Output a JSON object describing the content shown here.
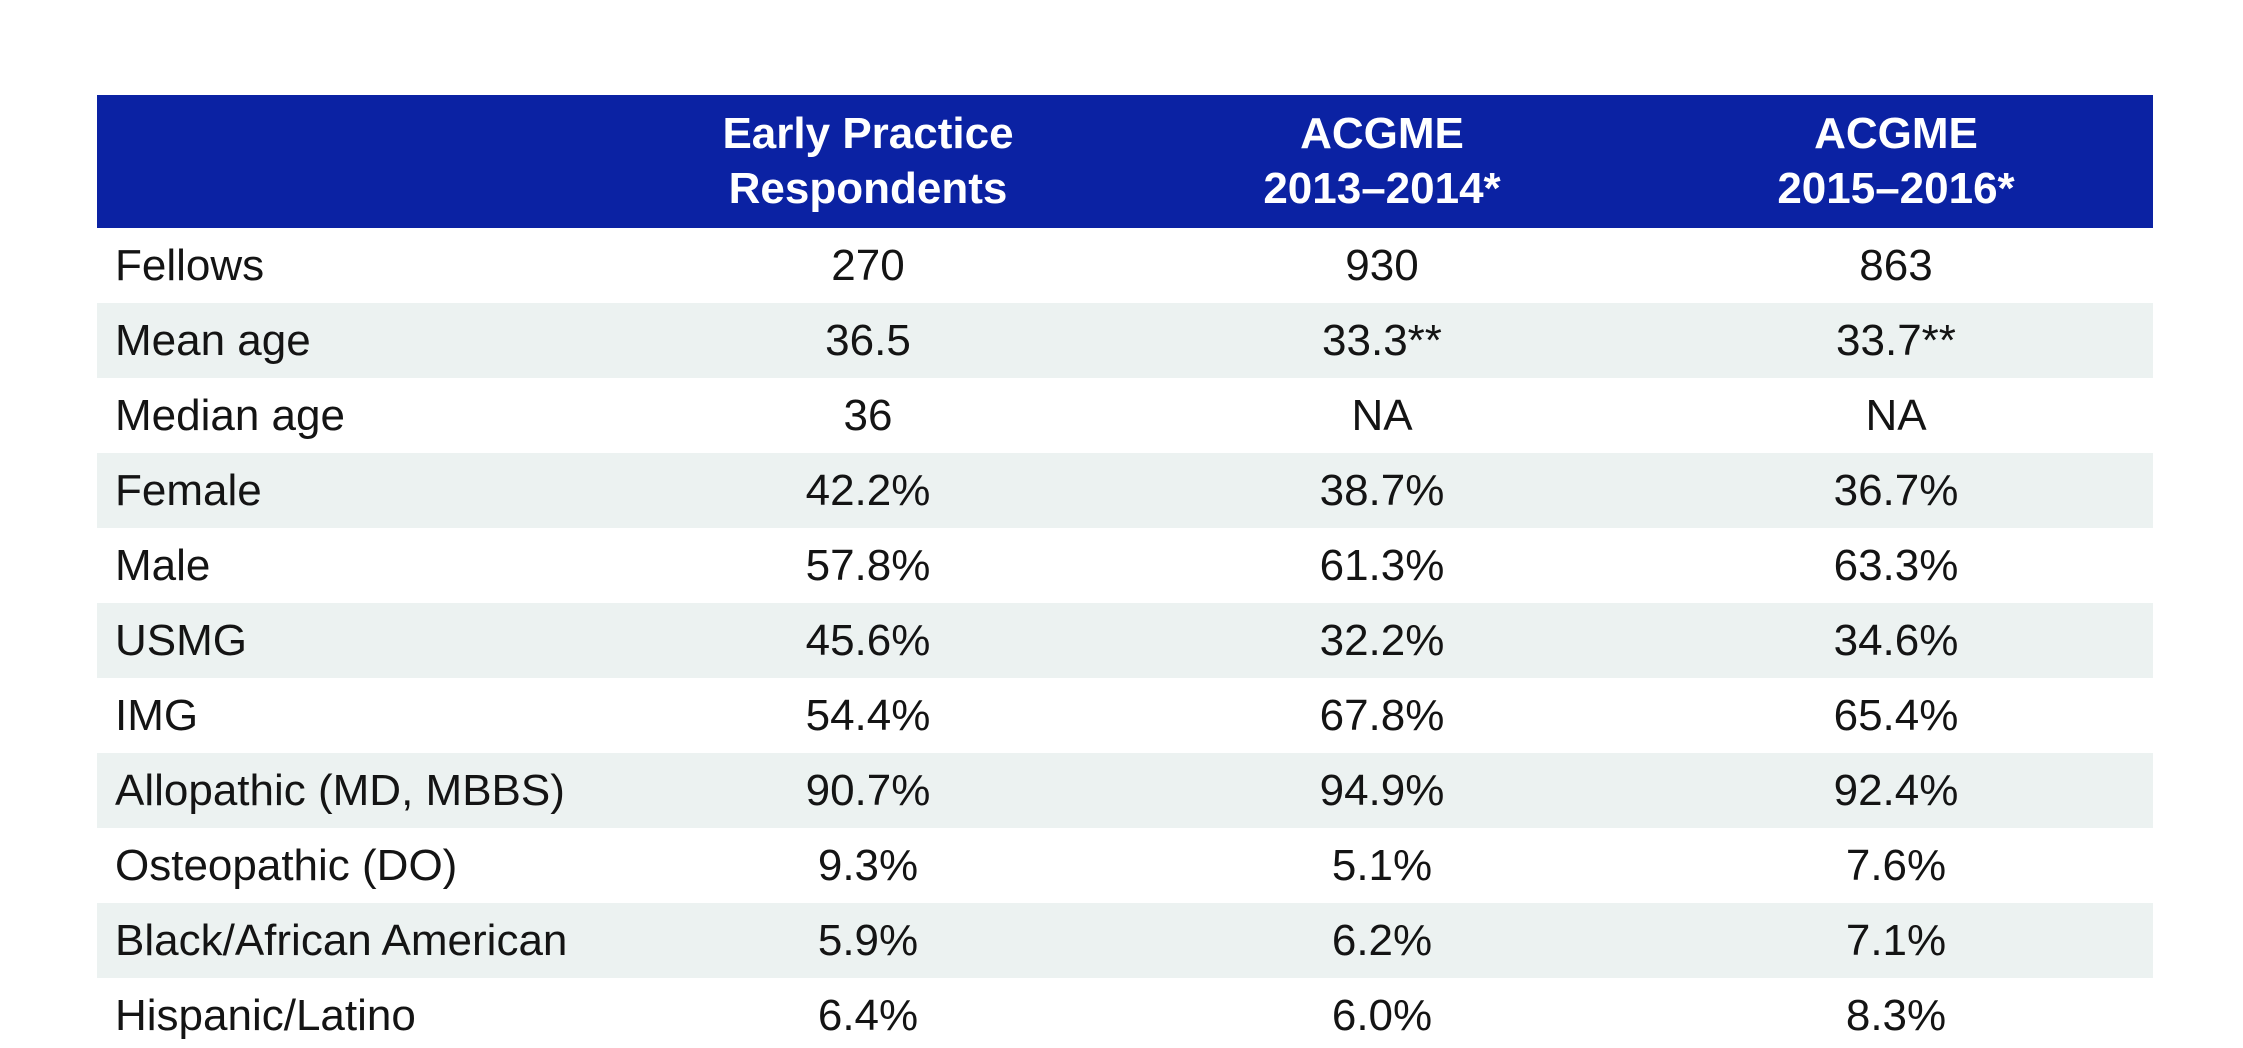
{
  "colors": {
    "header_bg": "#0B22A3",
    "header_text": "#FFFFFF",
    "stripe_bg": "#ECF2F1",
    "body_text": "#141414",
    "page_bg": "#FFFFFF"
  },
  "chart_data": {
    "type": "table",
    "columns": [
      "",
      "Early Practice Respondents",
      "ACGME 2013–2014*",
      "ACGME 2015–2016*"
    ],
    "rows": [
      [
        "Fellows",
        "270",
        "930",
        "863"
      ],
      [
        "Mean age",
        "36.5",
        "33.3**",
        "33.7**"
      ],
      [
        "Median age",
        "36",
        "NA",
        "NA"
      ],
      [
        "Female",
        "42.2%",
        "38.7%",
        "36.7%"
      ],
      [
        "Male",
        "57.8%",
        "61.3%",
        "63.3%"
      ],
      [
        "USMG",
        "45.6%",
        "32.2%",
        "34.6%"
      ],
      [
        "IMG",
        "54.4%",
        "67.8%",
        "65.4%"
      ],
      [
        "Allopathic (MD, MBBS)",
        "90.7%",
        "94.9%",
        "92.4%"
      ],
      [
        "Osteopathic (DO)",
        "9.3%",
        "5.1%",
        "7.6%"
      ],
      [
        "Black/African American",
        "5.9%",
        "6.2%",
        "7.1%"
      ],
      [
        "Hispanic/Latino",
        "6.4%",
        "6.0%",
        "8.3%"
      ]
    ]
  },
  "table": {
    "header": [
      {
        "line1": "",
        "line2": ""
      },
      {
        "line1": "Early Practice",
        "line2": "Respondents"
      },
      {
        "line1": "ACGME",
        "line2": "2013–2014*"
      },
      {
        "line1": "ACGME",
        "line2": "2015–2016*"
      }
    ],
    "rows": [
      {
        "label": "Fellows",
        "values": [
          "270",
          "930",
          "863"
        ]
      },
      {
        "label": "Mean age",
        "values": [
          "36.5",
          "33.3**",
          "33.7**"
        ]
      },
      {
        "label": "Median age",
        "values": [
          "36",
          "NA",
          "NA"
        ]
      },
      {
        "label": "Female",
        "values": [
          "42.2%",
          "38.7%",
          "36.7%"
        ]
      },
      {
        "label": "Male",
        "values": [
          "57.8%",
          "61.3%",
          "63.3%"
        ]
      },
      {
        "label": "USMG",
        "values": [
          "45.6%",
          "32.2%",
          "34.6%"
        ]
      },
      {
        "label": "IMG",
        "values": [
          "54.4%",
          "67.8%",
          "65.4%"
        ]
      },
      {
        "label": "Allopathic (MD, MBBS)",
        "values": [
          "90.7%",
          "94.9%",
          "92.4%"
        ]
      },
      {
        "label": "Osteopathic (DO)",
        "values": [
          "9.3%",
          "5.1%",
          "7.6%"
        ]
      },
      {
        "label": "Black/African American",
        "values": [
          "5.9%",
          "6.2%",
          "7.1%"
        ]
      },
      {
        "label": "Hispanic/Latino",
        "values": [
          "6.4%",
          "6.0%",
          "8.3%"
        ]
      }
    ]
  }
}
